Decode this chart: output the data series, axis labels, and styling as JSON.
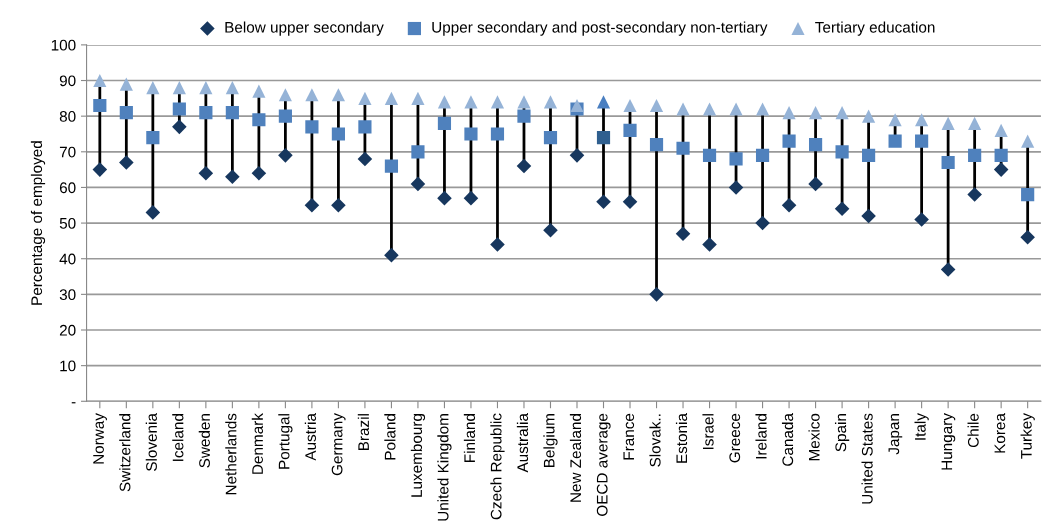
{
  "chart_data": {
    "type": "scatter",
    "ylabel": "Percentage of employed",
    "categories": [
      "Norway",
      "Switzerland",
      "Slovenia",
      "Iceland",
      "Sweden",
      "Netherlands",
      "Denmark",
      "Portugal",
      "Austria",
      "Germany",
      "Brazil",
      "Poland",
      "Luxembourg",
      "United Kingdom",
      "Finland",
      "Czech Republic",
      "Australia",
      "Belgium",
      "New Zealand",
      "OECD average",
      "France",
      "Slovak..",
      "Estonia",
      "Israel",
      "Greece",
      "Ireland",
      "Canada",
      "Mexico",
      "Spain",
      "United States",
      "Japan",
      "Italy",
      "Hungary",
      "Chile",
      "Korea",
      "Turkey"
    ],
    "series": [
      {
        "name": "Below upper secondary",
        "color": "#17375e",
        "marker": "diamond",
        "values": [
          65,
          67,
          53,
          77,
          64,
          63,
          64,
          69,
          55,
          55,
          68,
          41,
          61,
          57,
          57,
          44,
          66,
          48,
          69,
          56,
          56,
          30,
          47,
          44,
          60,
          50,
          55,
          61,
          54,
          52,
          null,
          51,
          37,
          58,
          65,
          46
        ]
      },
      {
        "name": "Upper secondary and post-secondary non-tertiary",
        "color": "#4f81bd",
        "marker": "square",
        "colors": [
          "#4f81bd",
          "#4f81bd",
          "#4f81bd",
          "#4f81bd",
          "#4f81bd",
          "#4f81bd",
          "#4f81bd",
          "#4f81bd",
          "#4f81bd",
          "#4f81bd",
          "#4f81bd",
          "#4f81bd",
          "#4f81bd",
          "#4f81bd",
          "#4f81bd",
          "#4f81bd",
          "#4f81bd",
          "#4f81bd",
          "#4f81bd",
          "#2f5f8f",
          "#4f81bd",
          "#4f81bd",
          "#4f81bd",
          "#4f81bd",
          "#4f81bd",
          "#4f81bd",
          "#4f81bd",
          "#4f81bd",
          "#4f81bd",
          "#4f81bd",
          "#4f81bd",
          "#4f81bd",
          "#4f81bd",
          "#4f81bd",
          "#4f81bd",
          "#4f81bd"
        ],
        "values": [
          83,
          81,
          74,
          82,
          81,
          81,
          79,
          80,
          77,
          75,
          77,
          66,
          70,
          78,
          75,
          75,
          80,
          74,
          82,
          74,
          76,
          72,
          71,
          69,
          68,
          69,
          73,
          72,
          70,
          69,
          73,
          73,
          67,
          69,
          69,
          58
        ]
      },
      {
        "name": "Tertiary education",
        "color": "#95b3d7",
        "marker": "triangle",
        "colors": [
          "#95b3d7",
          "#95b3d7",
          "#95b3d7",
          "#95b3d7",
          "#95b3d7",
          "#95b3d7",
          "#95b3d7",
          "#95b3d7",
          "#95b3d7",
          "#95b3d7",
          "#95b3d7",
          "#95b3d7",
          "#95b3d7",
          "#95b3d7",
          "#95b3d7",
          "#95b3d7",
          "#95b3d7",
          "#95b3d7",
          "#95b3d7",
          "#4a7fc1",
          "#95b3d7",
          "#95b3d7",
          "#95b3d7",
          "#95b3d7",
          "#95b3d7",
          "#95b3d7",
          "#95b3d7",
          "#95b3d7",
          "#95b3d7",
          "#95b3d7",
          "#95b3d7",
          "#95b3d7",
          "#95b3d7",
          "#95b3d7",
          "#95b3d7",
          "#95b3d7"
        ],
        "values": [
          90,
          89,
          88,
          88,
          88,
          88,
          87,
          86,
          86,
          86,
          85,
          85,
          85,
          84,
          84,
          84,
          84,
          84,
          83,
          84,
          83,
          83,
          82,
          82,
          82,
          82,
          81,
          81,
          81,
          80,
          79,
          79,
          78,
          78,
          76,
          73
        ]
      }
    ],
    "ylim": [
      0,
      100
    ],
    "yticks": [
      {
        "value": 0,
        "label": "-"
      },
      10,
      20,
      30,
      40,
      50,
      60,
      70,
      80,
      90,
      100
    ],
    "grid": "y",
    "legend": "top"
  }
}
